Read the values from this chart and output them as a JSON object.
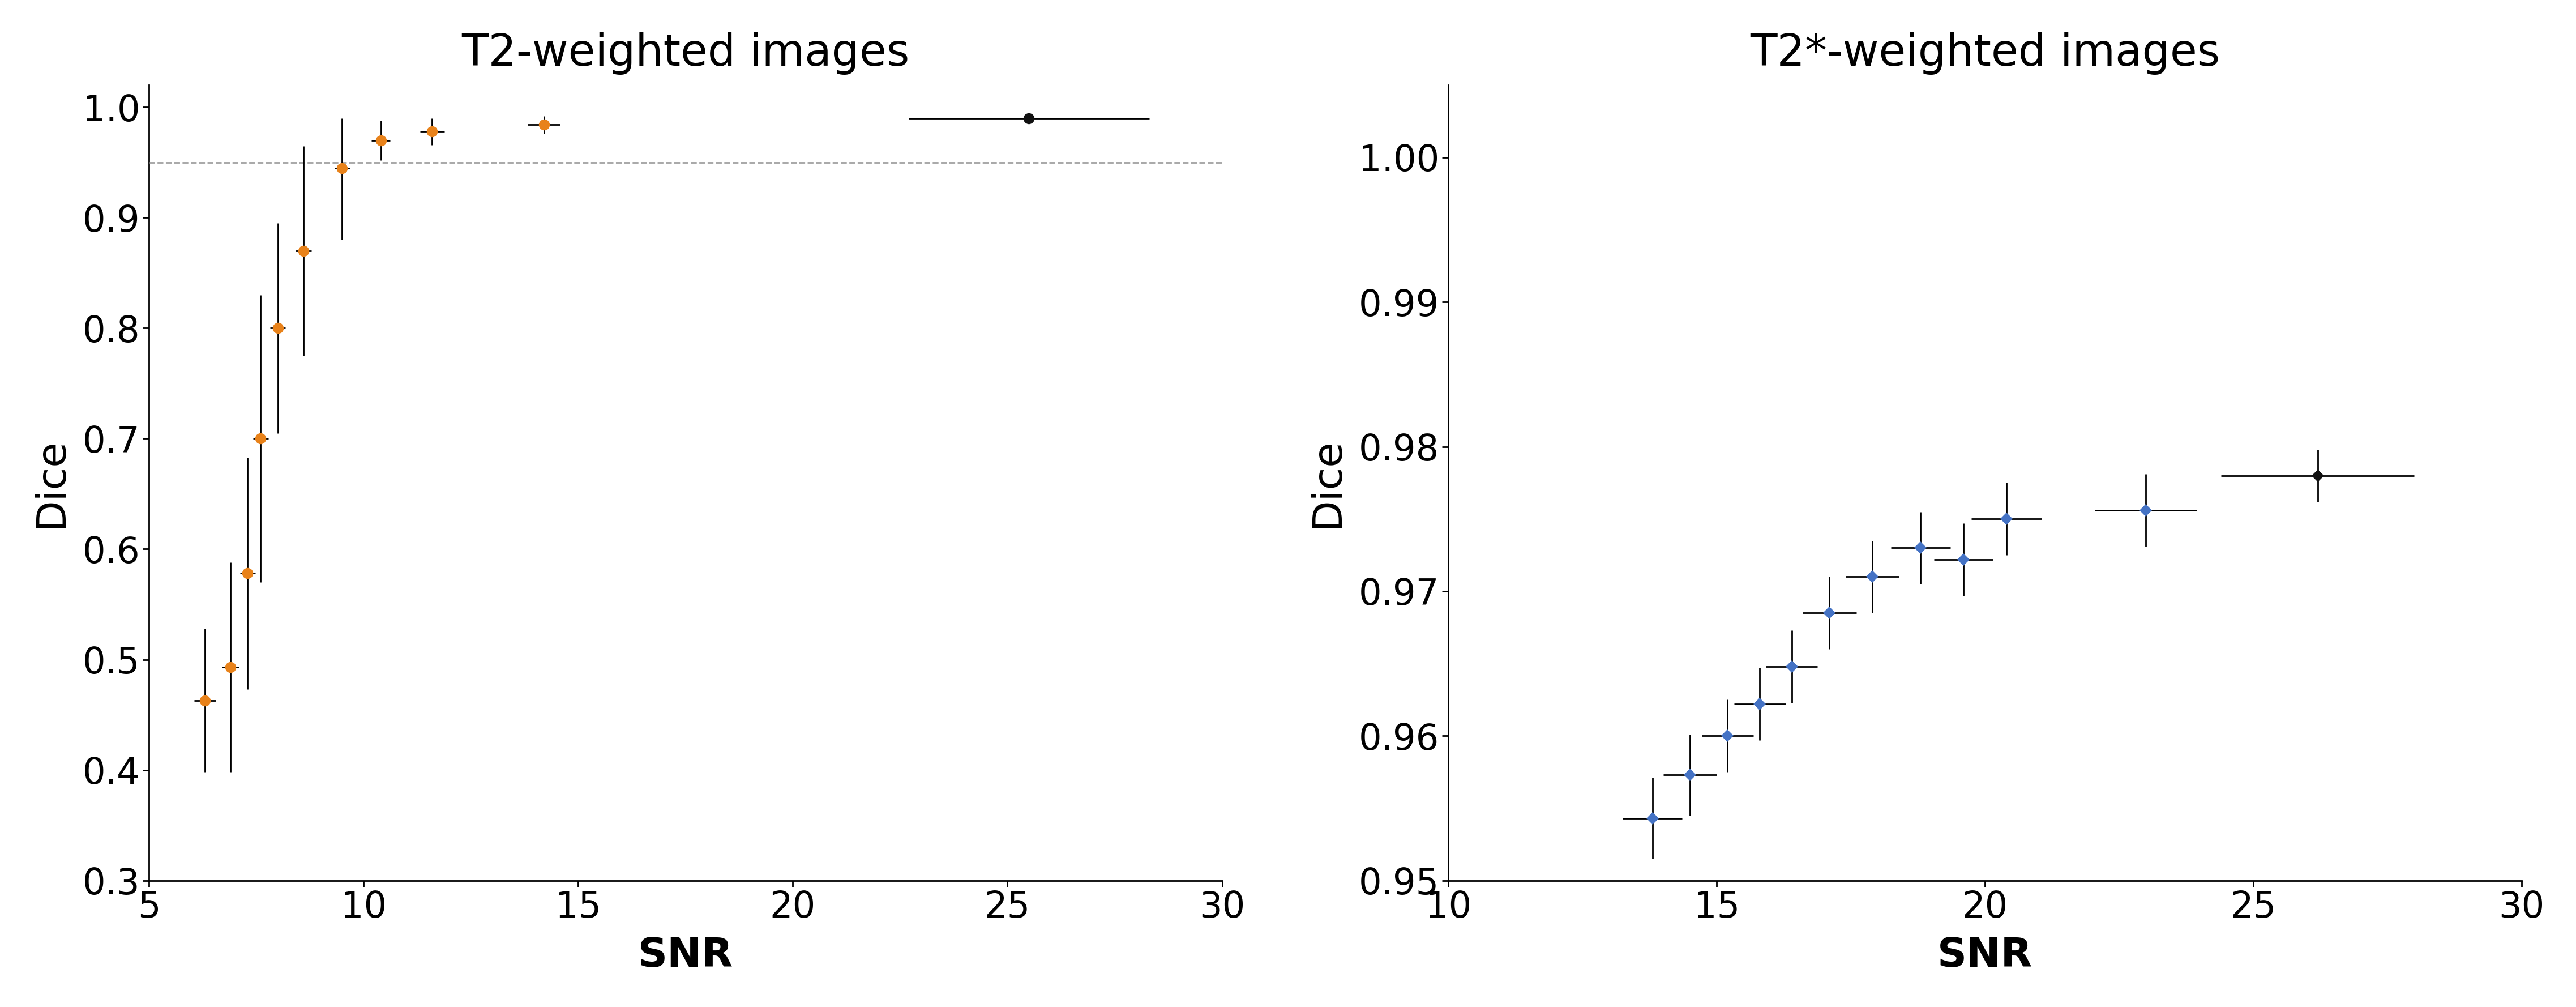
{
  "plot1": {
    "title": "T2-weighted images",
    "xlabel": "SNR",
    "ylabel": "Dice",
    "xlim": [
      5,
      30
    ],
    "ylim": [
      0.3,
      1.02
    ],
    "yticks": [
      0.3,
      0.4,
      0.5,
      0.6,
      0.7,
      0.8,
      0.9,
      1.0
    ],
    "xticks": [
      5,
      10,
      15,
      20,
      25,
      30
    ],
    "dashed_line_y": 0.95,
    "orange_x": [
      6.3,
      6.9,
      7.3,
      7.6,
      8.0,
      8.6,
      9.5,
      10.4,
      11.6,
      14.2
    ],
    "orange_y": [
      0.463,
      0.493,
      0.578,
      0.7,
      0.8,
      0.87,
      0.945,
      0.97,
      0.978,
      0.984
    ],
    "orange_xerr": [
      0.25,
      0.2,
      0.18,
      0.18,
      0.18,
      0.18,
      0.18,
      0.22,
      0.28,
      0.38
    ],
    "orange_yerr_lo": [
      0.065,
      0.095,
      0.105,
      0.13,
      0.095,
      0.095,
      0.065,
      0.018,
      0.012,
      0.008
    ],
    "orange_yerr_hi": [
      0.065,
      0.095,
      0.105,
      0.13,
      0.095,
      0.095,
      0.045,
      0.018,
      0.012,
      0.008
    ],
    "black_x": [
      25.5
    ],
    "black_y": [
      0.99
    ],
    "black_xerr": [
      2.8
    ],
    "black_yerr": [
      0.003
    ],
    "orange_color": "#E8821A",
    "black_color": "#111111",
    "marker_size": 14
  },
  "plot2": {
    "title": "T2*-weighted images",
    "xlabel": "SNR",
    "ylabel": "Dice",
    "xlim": [
      10,
      30
    ],
    "ylim": [
      0.95,
      1.005
    ],
    "yticks": [
      0.95,
      0.96,
      0.97,
      0.98,
      0.99,
      1.0
    ],
    "xticks": [
      10,
      15,
      20,
      25,
      30
    ],
    "blue_x": [
      13.8,
      14.5,
      15.2,
      15.8,
      16.4,
      17.1,
      17.9,
      18.8,
      19.6,
      20.4,
      23.0
    ],
    "blue_y": [
      0.9543,
      0.9573,
      0.96,
      0.9622,
      0.9648,
      0.9685,
      0.971,
      0.973,
      0.9722,
      0.975,
      0.9756
    ],
    "blue_xerr": [
      0.55,
      0.5,
      0.48,
      0.48,
      0.48,
      0.5,
      0.5,
      0.55,
      0.55,
      0.65,
      0.95
    ],
    "blue_yerr": [
      0.0028,
      0.0028,
      0.0025,
      0.0025,
      0.0025,
      0.0025,
      0.0025,
      0.0025,
      0.0025,
      0.0025,
      0.0025
    ],
    "black_x": [
      26.2
    ],
    "black_y": [
      0.978
    ],
    "black_xerr": [
      1.8
    ],
    "black_yerr": [
      0.0018
    ],
    "blue_color": "#4472C4",
    "black_color": "#111111",
    "marker_size": 11
  },
  "title_fontsize": 56,
  "label_fontsize": 52,
  "tick_fontsize": 46,
  "fig_width": 45.5,
  "fig_height": 17.78
}
